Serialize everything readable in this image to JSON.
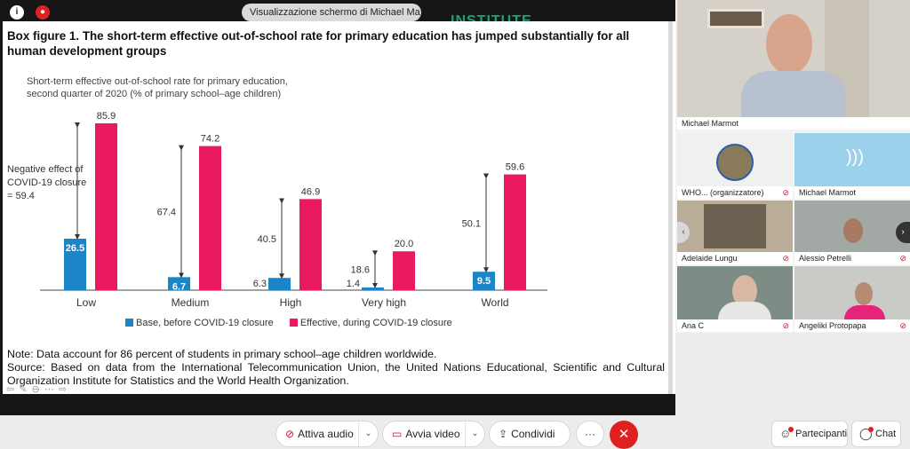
{
  "topbar": {
    "share_label": "Visualizzazione schermo di Michael Ma...",
    "logo_hint": "INSTITUTE"
  },
  "slide": {
    "box_title": "Box figure 1. The short-term effective out-of-school rate for primary education has jumped substantially for all human development groups",
    "subtitle_line1": "Short-term effective out-of-school rate for primary education,",
    "subtitle_line2": "second quarter of 2020 (% of primary school–age children)",
    "neg_note": "Negative effect of COVID-19 closure = 59.4",
    "note": "Note: Data account for 86 percent of students in primary school–age children worldwide.",
    "source": "Source: Based on data from the International Telecommunication Union, the United Nations Educational, Scientific and Cultural Organization Institute for Statistics and the World Health Organization.",
    "nav": "⇦ ✎ ⊖ ⋯ ⇨"
  },
  "chart_data": {
    "type": "bar",
    "categories": [
      "Low",
      "Medium",
      "High",
      "Very high",
      "World"
    ],
    "series": [
      {
        "name": "Base, before COVID-19 closure",
        "values": [
          26.5,
          6.7,
          6.3,
          1.4,
          9.5
        ],
        "color": "#1a86c8"
      },
      {
        "name": "Effective, during COVID-19 closure",
        "values": [
          85.9,
          74.2,
          46.9,
          20.0,
          59.6
        ],
        "color": "#ea1a62"
      }
    ],
    "base_labels": [
      "26.5",
      "6.7",
      "6.3",
      "1.4",
      "9.5"
    ],
    "effective_labels": [
      "85.9",
      "74.2",
      "46.9",
      "20.0",
      "59.6"
    ],
    "difference_labels": [
      "",
      "67.4",
      "40.5",
      "18.6",
      "50.1"
    ],
    "ylim": [
      0,
      90
    ]
  },
  "sidebar": {
    "tiles": [
      {
        "name": "Michael Marmot"
      },
      {
        "name": "WHO... (organizzatore)"
      },
      {
        "name": "Michael Marmot"
      },
      {
        "name": "Adelaide Lungu"
      },
      {
        "name": "Alessio Petrelli"
      },
      {
        "name": "Ana C"
      },
      {
        "name": "Angeliki Protopapa"
      }
    ]
  },
  "controls": {
    "audio": "Attiva audio",
    "video": "Avvia video",
    "share": "Condividi",
    "more": "···",
    "end": "✕",
    "participants": "Partecipanti",
    "chat": "Chat"
  },
  "colors": {
    "base": "#1a86c8",
    "effective": "#ea1a62",
    "end_call": "#e02020"
  }
}
